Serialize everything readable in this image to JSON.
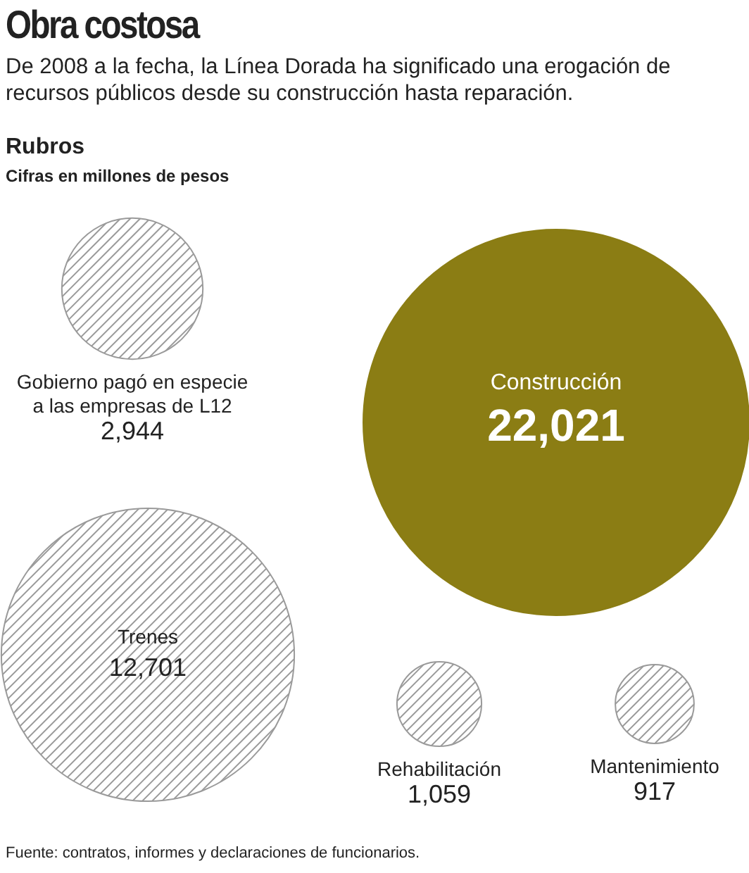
{
  "chart_data": {
    "type": "other",
    "title": "Obra costosa",
    "subtitle": "De 2008 a la fecha, la Línea Dorada ha significado una erogación de recursos públicos desde su construcción hasta reparación.",
    "legend_title": "Rubros",
    "ylabel": "Cifras en millones de pesos",
    "categories": [
      "Gobierno pagó en especie a las empresas de L12",
      "Construcción",
      "Trenes",
      "Rehabilitación",
      "Mantenimiento"
    ],
    "values": [
      2944,
      22021,
      12701,
      1059,
      917
    ],
    "value_labels": [
      "2,944",
      "22,021",
      "12,701",
      "1,059",
      "917"
    ],
    "colors": [
      "#9a9a9a",
      "#8b7d14",
      "#9a9a9a",
      "#9a9a9a",
      "#9a9a9a"
    ],
    "annotations": [
      "Fuente: contratos, informes y declaraciones de funcionarios."
    ]
  }
}
